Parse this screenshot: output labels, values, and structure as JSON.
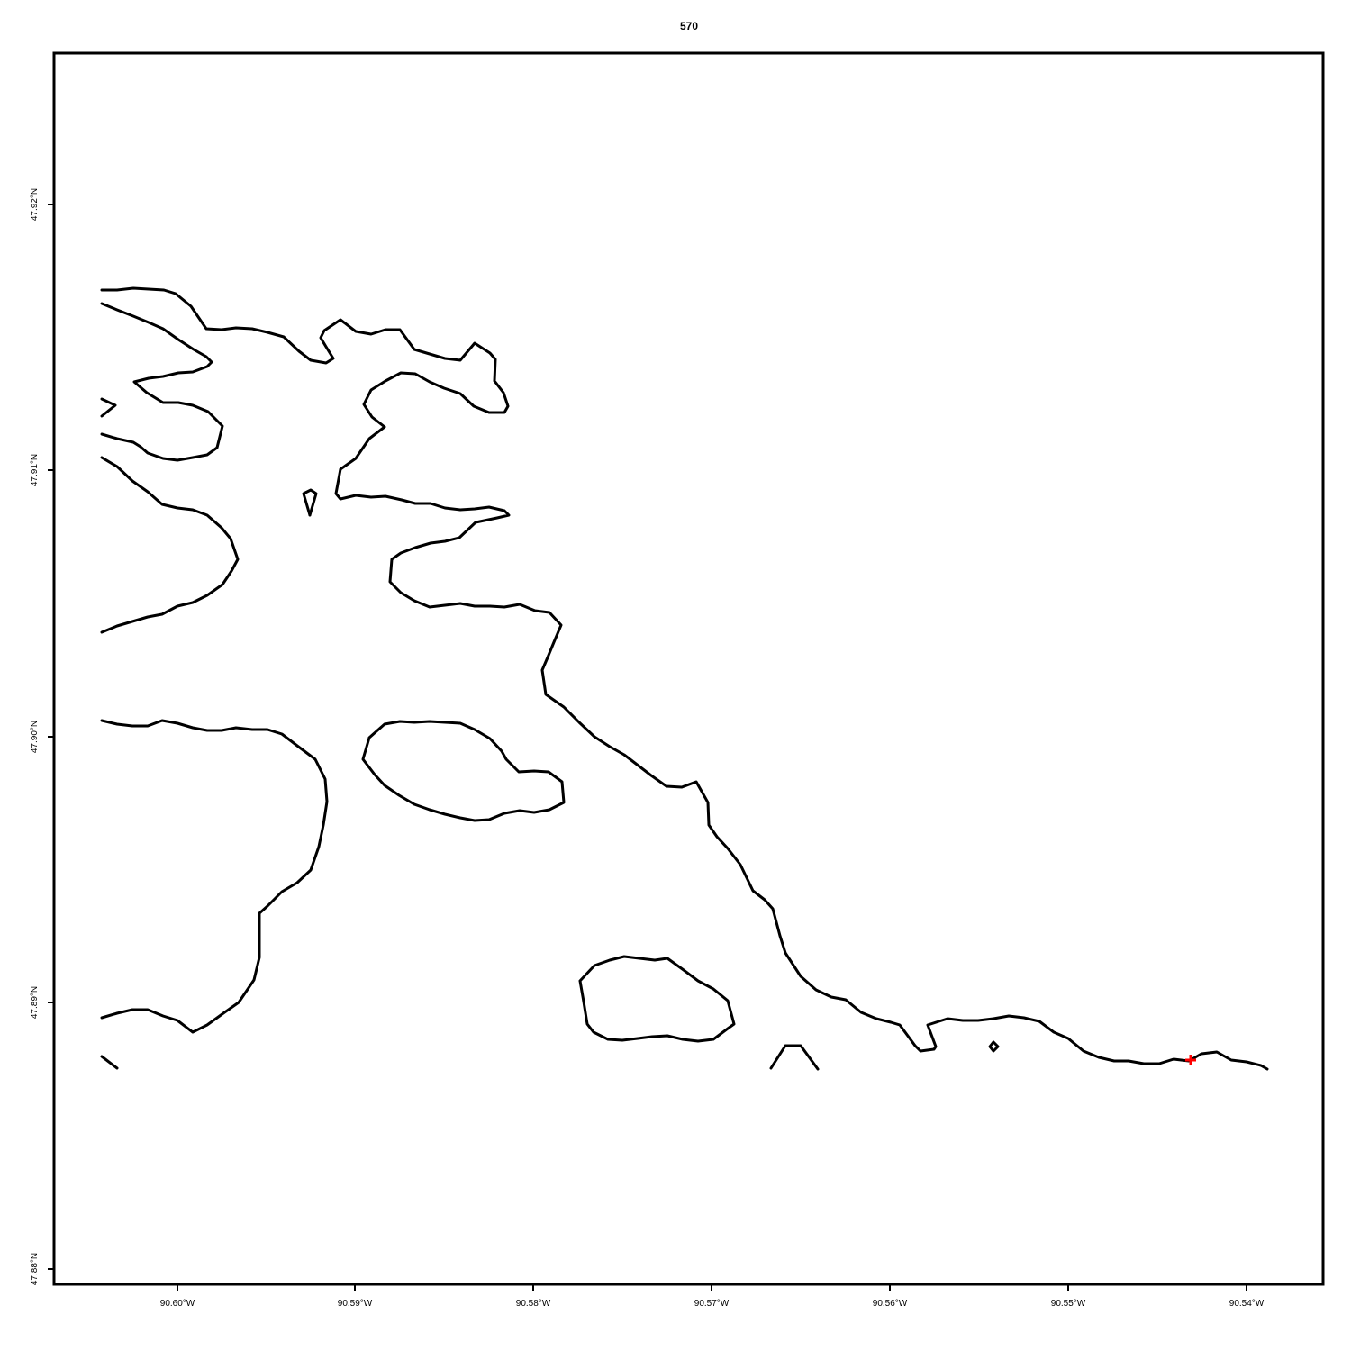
{
  "title": "570",
  "x_tick_labels": [
    "90.60°W",
    "90.59°W",
    "90.58°W",
    "90.57°W",
    "90.56°W",
    "90.55°W",
    "90.54°W"
  ],
  "y_tick_labels": [
    "47.92°N",
    "47.91°N",
    "47.90°N",
    "47.89°N",
    "47.88°N"
  ],
  "colors": {
    "contour": "#000000",
    "marker": "#ff0000",
    "frame": "#000000"
  },
  "marker": {
    "shape": "plus",
    "color": "red"
  }
}
